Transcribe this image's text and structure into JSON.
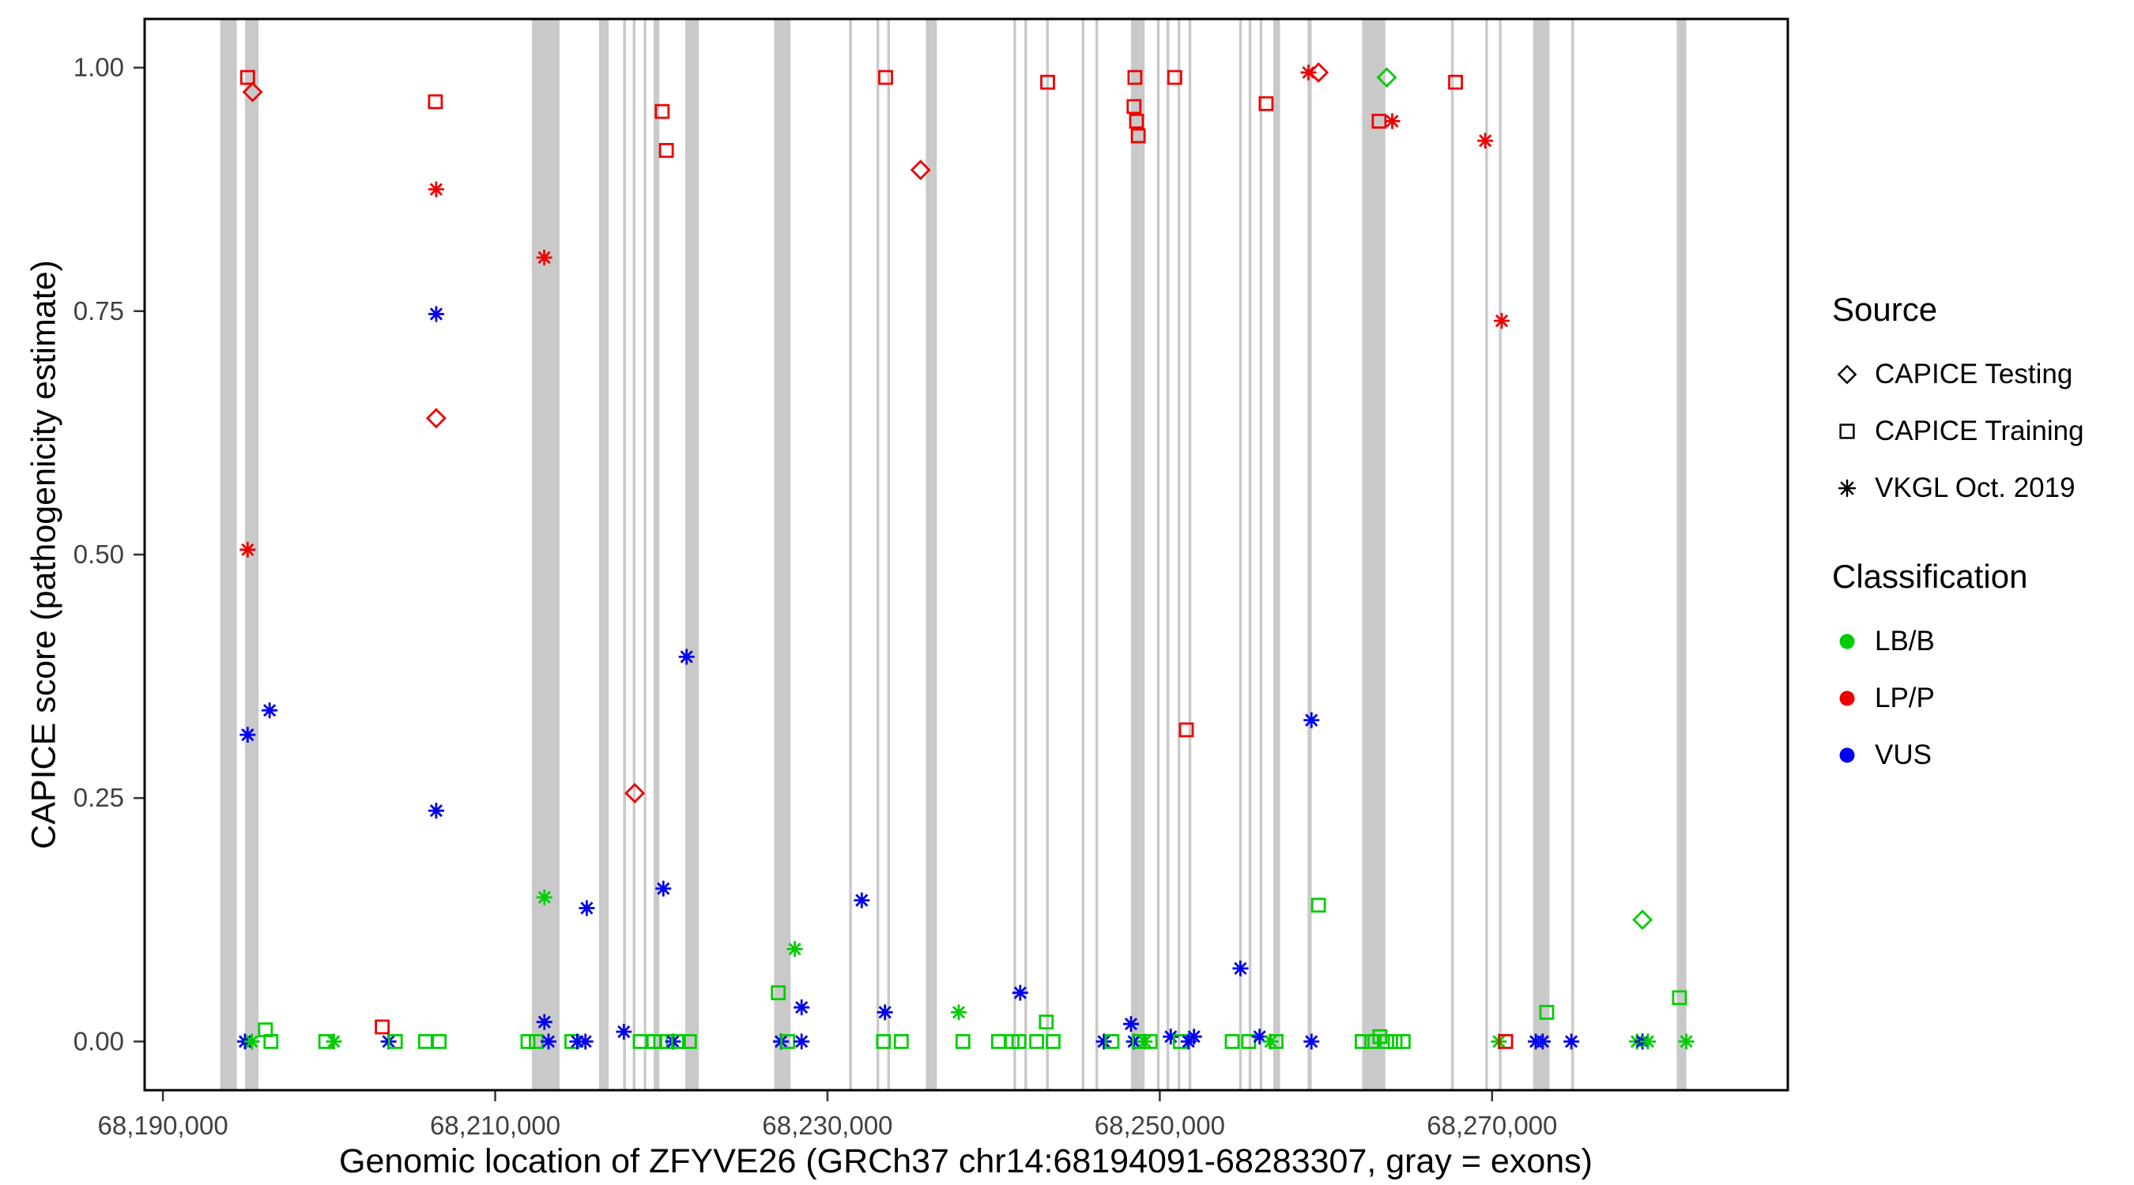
{
  "figure": {
    "background": "#ffffff",
    "panel_border_color": "#000000",
    "tick_text_color": "#404040"
  },
  "legend": {
    "source": {
      "title": "Source",
      "items": [
        {
          "shape": "diamond",
          "label": "CAPICE Testing"
        },
        {
          "shape": "square",
          "label": "CAPICE Training"
        },
        {
          "shape": "asterisk",
          "label": "VKGL Oct. 2019"
        }
      ]
    },
    "classification": {
      "title": "Classification",
      "items": [
        {
          "color": "#00cd00",
          "label": "LB/B"
        },
        {
          "color": "#ee0000",
          "label": "LP/P"
        },
        {
          "color": "#0000ee",
          "label": "VUS"
        }
      ]
    }
  },
  "chart_data": {
    "type": "scatter",
    "title": "",
    "xlabel": "Genomic location of ZFYVE26 (GRCh37 chr14:68194091-68283307, gray = exons)",
    "ylabel": "CAPICE score (pathogenicity estimate)",
    "xlim": [
      68188900,
      68287800
    ],
    "ylim": [
      0,
      1
    ],
    "grid": false,
    "legend_position": "right",
    "x_ticks": [
      {
        "value": 68190000,
        "label": "68,190,000"
      },
      {
        "value": 68210000,
        "label": "68,210,000"
      },
      {
        "value": 68230000,
        "label": "68,230,000"
      },
      {
        "value": 68250000,
        "label": "68,250,000"
      },
      {
        "value": 68270000,
        "label": "68,270,000"
      }
    ],
    "y_ticks": [
      {
        "value": 0.0,
        "label": "0.00"
      },
      {
        "value": 0.25,
        "label": "0.25"
      },
      {
        "value": 0.5,
        "label": "0.50"
      },
      {
        "value": 0.75,
        "label": "0.75"
      },
      {
        "value": 1.0,
        "label": "1.00"
      }
    ],
    "colors": {
      "LB/B": "#00cd00",
      "LP/P": "#ee0000",
      "VUS": "#0000ee",
      "exon": "#c9c9c9"
    },
    "exons": [
      [
        68193450,
        68194450
      ],
      [
        68194940,
        68195760
      ],
      [
        68212200,
        68213870
      ],
      [
        68216250,
        68216830
      ],
      [
        68217700,
        68217870
      ],
      [
        68218280,
        68218440
      ],
      [
        68218940,
        68219090
      ],
      [
        68219540,
        68219880
      ],
      [
        68221440,
        68222260
      ],
      [
        68226790,
        68227780
      ],
      [
        68231300,
        68231470
      ],
      [
        68232950,
        68233110
      ],
      [
        68233600,
        68233760
      ],
      [
        68235920,
        68236580
      ],
      [
        68241190,
        68241350
      ],
      [
        68241850,
        68242010
      ],
      [
        68243160,
        68243320
      ],
      [
        68245300,
        68245460
      ],
      [
        68246130,
        68246290
      ],
      [
        68248270,
        68249090
      ],
      [
        68249830,
        68249990
      ],
      [
        68250410,
        68250570
      ],
      [
        68251070,
        68251230
      ],
      [
        68251730,
        68251890
      ],
      [
        68254770,
        68254930
      ],
      [
        68255350,
        68255510
      ],
      [
        68256010,
        68256170
      ],
      [
        68256830,
        68257240
      ],
      [
        68258890,
        68259140
      ],
      [
        68262180,
        68263580
      ],
      [
        68267530,
        68267690
      ],
      [
        68269590,
        68269750
      ],
      [
        68270410,
        68270570
      ],
      [
        68272470,
        68273460
      ],
      [
        68274770,
        68274930
      ],
      [
        68281110,
        68281690
      ]
    ],
    "points": [
      {
        "pos": 68194940,
        "score": 0,
        "source": "vkgl",
        "class": "VUS"
      },
      {
        "pos": 68195350,
        "score": 0,
        "source": "vkgl",
        "class": "LB/B"
      },
      {
        "pos": 68195100,
        "score": 0.99,
        "source": "training",
        "class": "LP/P"
      },
      {
        "pos": 68195400,
        "score": 0.975,
        "source": "testing",
        "class": "LP/P"
      },
      {
        "pos": 68195100,
        "score": 0.505,
        "source": "vkgl",
        "class": "LP/P"
      },
      {
        "pos": 68195100,
        "score": 0.315,
        "source": "vkgl",
        "class": "VUS"
      },
      {
        "pos": 68196420,
        "score": 0.34,
        "source": "vkgl",
        "class": "VUS"
      },
      {
        "pos": 68196170,
        "score": 0.012,
        "source": "training",
        "class": "LB/B"
      },
      {
        "pos": 68196500,
        "score": 0,
        "source": "training",
        "class": "LB/B"
      },
      {
        "pos": 68199800,
        "score": 0,
        "source": "training",
        "class": "LB/B"
      },
      {
        "pos": 68200290,
        "score": 0,
        "source": "vkgl",
        "class": "LB/B"
      },
      {
        "pos": 68203200,
        "score": 0.015,
        "source": "training",
        "class": "LP/P"
      },
      {
        "pos": 68203580,
        "score": 0,
        "source": "vkgl",
        "class": "VUS"
      },
      {
        "pos": 68203990,
        "score": 0,
        "source": "training",
        "class": "LB/B"
      },
      {
        "pos": 68205800,
        "score": 0,
        "source": "training",
        "class": "LB/B"
      },
      {
        "pos": 68206630,
        "score": 0,
        "source": "training",
        "class": "LB/B"
      },
      {
        "pos": 68206400,
        "score": 0.965,
        "source": "training",
        "class": "LP/P"
      },
      {
        "pos": 68206450,
        "score": 0.875,
        "source": "vkgl",
        "class": "LP/P"
      },
      {
        "pos": 68206450,
        "score": 0.747,
        "source": "vkgl",
        "class": "VUS"
      },
      {
        "pos": 68206450,
        "score": 0.64,
        "source": "testing",
        "class": "LP/P"
      },
      {
        "pos": 68206450,
        "score": 0.237,
        "source": "vkgl",
        "class": "VUS"
      },
      {
        "pos": 68211970,
        "score": 0,
        "source": "training",
        "class": "LB/B"
      },
      {
        "pos": 68212470,
        "score": 0,
        "source": "training",
        "class": "LB/B"
      },
      {
        "pos": 68212950,
        "score": 0.805,
        "source": "vkgl",
        "class": "LP/P"
      },
      {
        "pos": 68212960,
        "score": 0.148,
        "source": "vkgl",
        "class": "LB/B"
      },
      {
        "pos": 68212960,
        "score": 0.02,
        "source": "vkgl",
        "class": "VUS"
      },
      {
        "pos": 68213210,
        "score": 0,
        "source": "vkgl",
        "class": "VUS"
      },
      {
        "pos": 68214610,
        "score": 0,
        "source": "training",
        "class": "LB/B"
      },
      {
        "pos": 68214940,
        "score": 0,
        "source": "vkgl",
        "class": "VUS"
      },
      {
        "pos": 68215430,
        "score": 0,
        "source": "vkgl",
        "class": "VUS"
      },
      {
        "pos": 68215510,
        "score": 0.137,
        "source": "vkgl",
        "class": "VUS"
      },
      {
        "pos": 68217740,
        "score": 0.01,
        "source": "vkgl",
        "class": "VUS"
      },
      {
        "pos": 68218400,
        "score": 0.255,
        "source": "testing",
        "class": "LP/P"
      },
      {
        "pos": 68218720,
        "score": 0,
        "source": "training",
        "class": "LB/B"
      },
      {
        "pos": 68219550,
        "score": 0,
        "source": "training",
        "class": "LB/B"
      },
      {
        "pos": 68219960,
        "score": 0,
        "source": "training",
        "class": "LB/B"
      },
      {
        "pos": 68220050,
        "score": 0.955,
        "source": "training",
        "class": "LP/P"
      },
      {
        "pos": 68220300,
        "score": 0.915,
        "source": "training",
        "class": "LP/P"
      },
      {
        "pos": 68220120,
        "score": 0.157,
        "source": "vkgl",
        "class": "VUS"
      },
      {
        "pos": 68220370,
        "score": 0,
        "source": "training",
        "class": "LB/B"
      },
      {
        "pos": 68220700,
        "score": 0,
        "source": "vkgl",
        "class": "VUS"
      },
      {
        "pos": 68221030,
        "score": 0,
        "source": "training",
        "class": "LB/B"
      },
      {
        "pos": 68221520,
        "score": 0.395,
        "source": "vkgl",
        "class": "VUS"
      },
      {
        "pos": 68221690,
        "score": 0,
        "source": "training",
        "class": "LB/B"
      },
      {
        "pos": 68227040,
        "score": 0.05,
        "source": "training",
        "class": "LB/B"
      },
      {
        "pos": 68227200,
        "score": 0,
        "source": "vkgl",
        "class": "VUS"
      },
      {
        "pos": 68227610,
        "score": 0,
        "source": "training",
        "class": "LB/B"
      },
      {
        "pos": 68228030,
        "score": 0.095,
        "source": "vkgl",
        "class": "LB/B"
      },
      {
        "pos": 68228440,
        "score": 0.035,
        "source": "vkgl",
        "class": "VUS"
      },
      {
        "pos": 68228440,
        "score": 0,
        "source": "vkgl",
        "class": "VUS"
      },
      {
        "pos": 68232060,
        "score": 0.145,
        "source": "vkgl",
        "class": "VUS"
      },
      {
        "pos": 68233500,
        "score": 0.99,
        "source": "training",
        "class": "LP/P"
      },
      {
        "pos": 68233460,
        "score": 0.03,
        "source": "vkgl",
        "class": "VUS"
      },
      {
        "pos": 68233370,
        "score": 0,
        "source": "training",
        "class": "LB/B"
      },
      {
        "pos": 68234440,
        "score": 0,
        "source": "training",
        "class": "LB/B"
      },
      {
        "pos": 68235600,
        "score": 0.895,
        "source": "testing",
        "class": "LP/P"
      },
      {
        "pos": 68237900,
        "score": 0.03,
        "source": "vkgl",
        "class": "LB/B"
      },
      {
        "pos": 68238150,
        "score": 0,
        "source": "training",
        "class": "LB/B"
      },
      {
        "pos": 68240290,
        "score": 0,
        "source": "training",
        "class": "LB/B"
      },
      {
        "pos": 68241110,
        "score": 0,
        "source": "training",
        "class": "LB/B"
      },
      {
        "pos": 68241520,
        "score": 0,
        "source": "training",
        "class": "LB/B"
      },
      {
        "pos": 68241600,
        "score": 0.05,
        "source": "vkgl",
        "class": "VUS"
      },
      {
        "pos": 68242590,
        "score": 0,
        "source": "training",
        "class": "LB/B"
      },
      {
        "pos": 68243250,
        "score": 0.985,
        "source": "training",
        "class": "LP/P"
      },
      {
        "pos": 68243170,
        "score": 0.02,
        "source": "training",
        "class": "LB/B"
      },
      {
        "pos": 68243580,
        "score": 0,
        "source": "training",
        "class": "LB/B"
      },
      {
        "pos": 68246630,
        "score": 0,
        "source": "vkgl",
        "class": "VUS"
      },
      {
        "pos": 68247120,
        "score": 0,
        "source": "training",
        "class": "LB/B"
      },
      {
        "pos": 68248500,
        "score": 0.99,
        "source": "training",
        "class": "LP/P"
      },
      {
        "pos": 68248450,
        "score": 0.96,
        "source": "training",
        "class": "LP/P"
      },
      {
        "pos": 68248600,
        "score": 0.945,
        "source": "training",
        "class": "LP/P"
      },
      {
        "pos": 68248700,
        "score": 0.93,
        "source": "training",
        "class": "LP/P"
      },
      {
        "pos": 68248270,
        "score": 0.018,
        "source": "vkgl",
        "class": "VUS"
      },
      {
        "pos": 68248440,
        "score": 0,
        "source": "vkgl",
        "class": "VUS"
      },
      {
        "pos": 68248770,
        "score": 0,
        "source": "training",
        "class": "LB/B"
      },
      {
        "pos": 68249090,
        "score": 0,
        "source": "vkgl",
        "class": "LB/B"
      },
      {
        "pos": 68249420,
        "score": 0,
        "source": "training",
        "class": "LB/B"
      },
      {
        "pos": 68250900,
        "score": 0.99,
        "source": "training",
        "class": "LP/P"
      },
      {
        "pos": 68250660,
        "score": 0.005,
        "source": "vkgl",
        "class": "VUS"
      },
      {
        "pos": 68251230,
        "score": 0,
        "source": "training",
        "class": "LB/B"
      },
      {
        "pos": 68251600,
        "score": 0.32,
        "source": "training",
        "class": "LP/P"
      },
      {
        "pos": 68251730,
        "score": 0,
        "source": "vkgl",
        "class": "VUS"
      },
      {
        "pos": 68252060,
        "score": 0.005,
        "source": "vkgl",
        "class": "VUS"
      },
      {
        "pos": 68254360,
        "score": 0,
        "source": "training",
        "class": "LB/B"
      },
      {
        "pos": 68254850,
        "score": 0.075,
        "source": "vkgl",
        "class": "VUS"
      },
      {
        "pos": 68255350,
        "score": 0,
        "source": "training",
        "class": "LB/B"
      },
      {
        "pos": 68256010,
        "score": 0.005,
        "source": "vkgl",
        "class": "VUS"
      },
      {
        "pos": 68256400,
        "score": 0.963,
        "source": "training",
        "class": "LP/P"
      },
      {
        "pos": 68256670,
        "score": 0,
        "source": "vkgl",
        "class": "LB/B"
      },
      {
        "pos": 68257000,
        "score": 0,
        "source": "training",
        "class": "LB/B"
      },
      {
        "pos": 68259130,
        "score": 0.33,
        "source": "vkgl",
        "class": "VUS"
      },
      {
        "pos": 68259130,
        "score": 0,
        "source": "vkgl",
        "class": "VUS"
      },
      {
        "pos": 68258950,
        "score": 0.995,
        "source": "vkgl",
        "class": "LP/P"
      },
      {
        "pos": 68259550,
        "score": 0.995,
        "source": "testing",
        "class": "LP/P"
      },
      {
        "pos": 68259550,
        "score": 0.14,
        "source": "training",
        "class": "LB/B"
      },
      {
        "pos": 68262180,
        "score": 0,
        "source": "training",
        "class": "LB/B"
      },
      {
        "pos": 68262760,
        "score": 0,
        "source": "training",
        "class": "LB/B"
      },
      {
        "pos": 68263250,
        "score": 0.005,
        "source": "training",
        "class": "LB/B"
      },
      {
        "pos": 68263200,
        "score": 0.945,
        "source": "training",
        "class": "LP/P"
      },
      {
        "pos": 68263990,
        "score": 0.945,
        "source": "vkgl",
        "class": "LP/P"
      },
      {
        "pos": 68263660,
        "score": 0.99,
        "source": "testing",
        "class": "LB/B"
      },
      {
        "pos": 68263660,
        "score": 0,
        "source": "training",
        "class": "LB/B"
      },
      {
        "pos": 68264160,
        "score": 0,
        "source": "training",
        "class": "LB/B"
      },
      {
        "pos": 68264650,
        "score": 0,
        "source": "training",
        "class": "LB/B"
      },
      {
        "pos": 68267800,
        "score": 0.985,
        "source": "training",
        "class": "LP/P"
      },
      {
        "pos": 68269590,
        "score": 0.925,
        "source": "vkgl",
        "class": "LP/P"
      },
      {
        "pos": 68270580,
        "score": 0.74,
        "source": "vkgl",
        "class": "LP/P"
      },
      {
        "pos": 68270410,
        "score": 0,
        "source": "vkgl",
        "class": "LB/B"
      },
      {
        "pos": 68270820,
        "score": 0,
        "source": "training",
        "class": "LP/P"
      },
      {
        "pos": 68272630,
        "score": 0,
        "source": "vkgl",
        "class": "VUS"
      },
      {
        "pos": 68273050,
        "score": 0,
        "source": "vkgl",
        "class": "VUS"
      },
      {
        "pos": 68273290,
        "score": 0.03,
        "source": "training",
        "class": "LB/B"
      },
      {
        "pos": 68274770,
        "score": 0,
        "source": "vkgl",
        "class": "VUS"
      },
      {
        "pos": 68278720,
        "score": 0,
        "source": "vkgl",
        "class": "LB/B"
      },
      {
        "pos": 68279050,
        "score": 0.125,
        "source": "testing",
        "class": "LB/B"
      },
      {
        "pos": 68279050,
        "score": 0,
        "source": "vkgl",
        "class": "VUS"
      },
      {
        "pos": 68279380,
        "score": 0,
        "source": "vkgl",
        "class": "LB/B"
      },
      {
        "pos": 68281280,
        "score": 0.045,
        "source": "training",
        "class": "LB/B"
      },
      {
        "pos": 68281690,
        "score": 0,
        "source": "vkgl",
        "class": "LB/B"
      }
    ]
  }
}
